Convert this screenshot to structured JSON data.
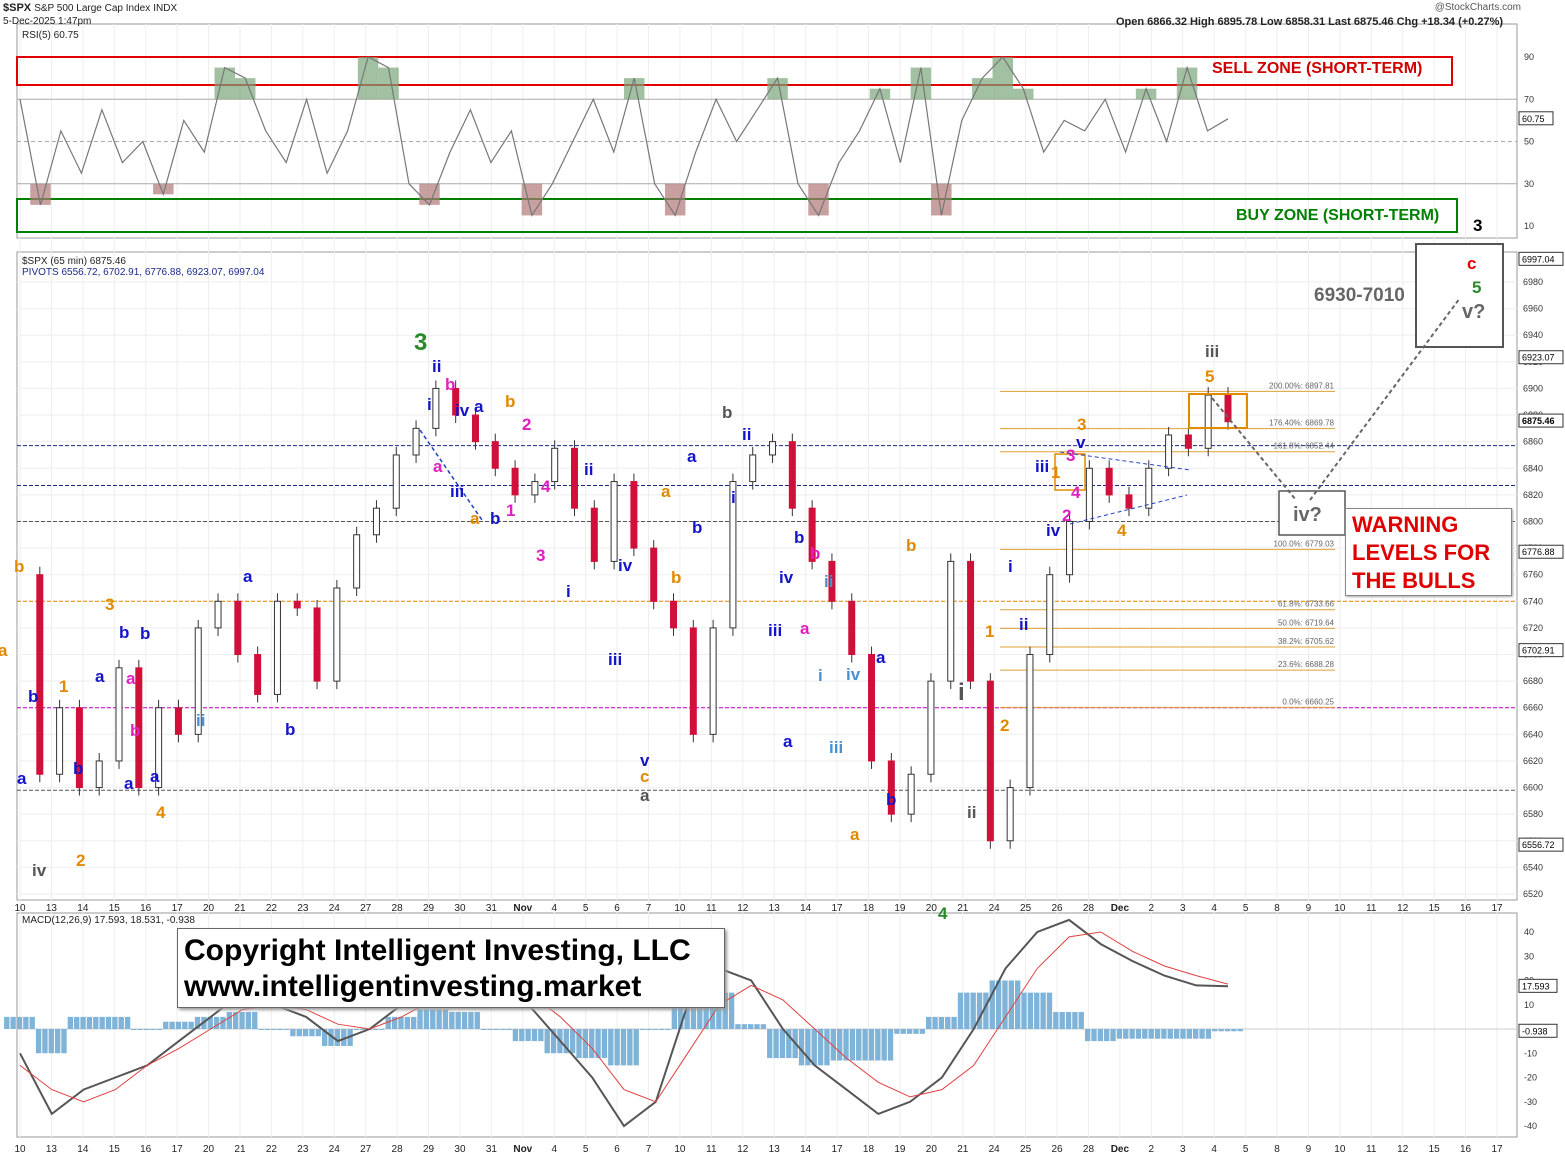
{
  "header": {
    "symbol": "$SPX",
    "name": "S&P 500 Large Cap Index",
    "exchange": "INDX",
    "datetime": "5-Dec-2025 1:47pm",
    "ohlc": "Open 6866.32  High 6895.78  Low 6858.31  Last 6875.46  Chg +18.34 (+0.27%)",
    "source": "@StockCharts.com",
    "price_legend": "$SPX (65 min) 6875.46",
    "pivots_legend": "PIVOTS 6556.72, 6702.91, 6776.88, 6923.07, 6997.04"
  },
  "rsi": {
    "legend": "RSI(5) 60.75",
    "current": "60.75",
    "ticks": [
      "90",
      "70",
      "50",
      "30",
      "10"
    ],
    "sell_zone": "SELL ZONE (SHORT-TERM)",
    "buy_zone": "BUY ZONE (SHORT-TERM)"
  },
  "macd": {
    "legend": "MACD(12,26,9) 17.593, 18.531, -0.938",
    "macd_value": "17.593",
    "hist_value": "-0.938",
    "ticks": [
      "40",
      "30",
      "20",
      "10",
      "-10",
      "-20",
      "-30",
      "-40"
    ]
  },
  "price_axis": {
    "ticks": [
      "6980",
      "6960",
      "6940",
      "6920",
      "6900",
      "6880",
      "6860",
      "6840",
      "6820",
      "6800",
      "6780",
      "6760",
      "6740",
      "6720",
      "6700",
      "6680",
      "6660",
      "6640",
      "6620",
      "6600",
      "6580",
      "6560",
      "6540",
      "6520"
    ],
    "tags": [
      "6997.04",
      "6923.07",
      "6875.46",
      "6776.88",
      "6702.91",
      "6556.72"
    ]
  },
  "x_axis": {
    "ticks": [
      "10",
      "13",
      "14",
      "15",
      "16",
      "17",
      "20",
      "21",
      "22",
      "23",
      "24",
      "27",
      "28",
      "29",
      "30",
      "31",
      "Nov",
      "4",
      "5",
      "6",
      "7",
      "10",
      "11",
      "12",
      "13",
      "14",
      "17",
      "18",
      "19",
      "20",
      "21",
      "24",
      "25",
      "26",
      "28",
      "Dec",
      "2",
      "3",
      "4",
      "5",
      "8",
      "9",
      "10",
      "11",
      "12",
      "15",
      "16",
      "17"
    ]
  },
  "fib": [
    {
      "label": "200.00%: 6897.81"
    },
    {
      "label": "176.40%: 6869.78"
    },
    {
      "label": "161.8%: 6852.44"
    },
    {
      "label": "100.0%: 6779.03"
    },
    {
      "label": "61.8%: 6733.66"
    },
    {
      "label": "50.0%: 6719.64"
    },
    {
      "label": "38.2%: 6705.62"
    },
    {
      "label": "23.6%: 6688.28"
    },
    {
      "label": "0.0%: 6660.25"
    }
  ],
  "annotations": {
    "target_range": "6930-7010",
    "warning": [
      "WARNING",
      "LEVELS FOR",
      "THE BULLS"
    ],
    "copyright": [
      "Copyright Intelligent Investing, LLC",
      "www.intelligentinvesting.market"
    ],
    "iv_q": "iv?",
    "v_q": "v?"
  },
  "chart_data": [
    {
      "type": "line",
      "title": "$SPX (65 min) 6875.46",
      "series": [
        {
          "name": "$SPX",
          "values": [
            6760,
            6610,
            6660,
            6600,
            6620,
            6690,
            6600,
            6660,
            6640,
            6720,
            6740,
            6700,
            6670,
            6740,
            6735,
            6680,
            6750,
            6790,
            6810,
            6850,
            6870,
            6900,
            6880,
            6860,
            6840,
            6820,
            6830,
            6855,
            6810,
            6770,
            6830,
            6780,
            6740,
            6720,
            6640,
            6720,
            6830,
            6850,
            6860,
            6810,
            6770,
            6740,
            6700,
            6620,
            6580,
            6610,
            6680,
            6770,
            6680,
            6560,
            6600,
            6700,
            6760,
            6800,
            6840,
            6820,
            6810,
            6840,
            6865,
            6855,
            6895,
            6875
          ]
        }
      ],
      "ylim": [
        6510,
        7000
      ]
    },
    {
      "type": "line",
      "title": "RSI(5) 60.75",
      "series": [
        {
          "name": "RSI(5)",
          "values": [
            70,
            20,
            55,
            35,
            65,
            40,
            50,
            25,
            60,
            45,
            85,
            80,
            55,
            40,
            70,
            35,
            55,
            90,
            85,
            30,
            20,
            45,
            65,
            40,
            55,
            15,
            30,
            50,
            70,
            45,
            80,
            30,
            15,
            45,
            70,
            50,
            65,
            80,
            30,
            15,
            40,
            55,
            75,
            40,
            85,
            15,
            60,
            80,
            90,
            75,
            45,
            60,
            55,
            70,
            45,
            75,
            50,
            85,
            55,
            60.75
          ]
        }
      ],
      "ylim": [
        0,
        100
      ]
    },
    {
      "type": "line",
      "title": "MACD(12,26,9) 17.593, 18.531, -0.938",
      "series": [
        {
          "name": "MACD",
          "values": [
            -10,
            -35,
            -25,
            -20,
            -15,
            -5,
            5,
            15,
            10,
            5,
            -5,
            0,
            10,
            20,
            25,
            20,
            10,
            -5,
            -20,
            -40,
            -30,
            10,
            25,
            20,
            0,
            -15,
            -25,
            -35,
            -30,
            -20,
            0,
            25,
            40,
            45,
            35,
            28,
            22,
            18,
            17.593
          ]
        },
        {
          "name": "Signal",
          "values": [
            -15,
            -25,
            -30,
            -25,
            -15,
            -8,
            0,
            8,
            10,
            8,
            2,
            0,
            5,
            12,
            18,
            20,
            15,
            5,
            -8,
            -25,
            -30,
            -10,
            10,
            18,
            12,
            0,
            -12,
            -22,
            -28,
            -25,
            -15,
            5,
            25,
            38,
            40,
            32,
            26,
            22,
            18.531
          ]
        }
      ],
      "histogram": [
        5,
        -10,
        5,
        5,
        0,
        3,
        5,
        7,
        0,
        -3,
        -7,
        0,
        5,
        8,
        7,
        0,
        -5,
        -10,
        -12,
        -15,
        0,
        20,
        15,
        2,
        -12,
        -15,
        -13,
        -13,
        -2,
        5,
        15,
        20,
        15,
        7,
        -5,
        -4,
        -4,
        -4,
        -0.938
      ],
      "ylim": [
        -45,
        45
      ]
    }
  ],
  "wave_labels": [
    {
      "t": "b",
      "c": "#e08a00"
    },
    {
      "t": "a",
      "c": "#e08a00"
    },
    {
      "t": "b",
      "c": "#1414c8"
    },
    {
      "t": "1",
      "c": "#e08a00"
    },
    {
      "t": "a",
      "c": "#1414c8"
    },
    {
      "t": "iv",
      "c": "#555"
    },
    {
      "t": "b",
      "c": "#1414c8"
    },
    {
      "t": "2",
      "c": "#e08a00"
    },
    {
      "t": "a",
      "c": "#1414c8"
    },
    {
      "t": "3",
      "c": "#e08a00"
    },
    {
      "t": "b",
      "c": "#1414c8"
    },
    {
      "t": "a",
      "c": "#1414c8"
    },
    {
      "t": "b",
      "c": "#1414c8"
    },
    {
      "t": "a",
      "c": "#e020c0"
    },
    {
      "t": "b",
      "c": "#e020c0"
    },
    {
      "t": "a",
      "c": "#1414c8"
    },
    {
      "t": "4",
      "c": "#e08a00"
    },
    {
      "t": "ii",
      "c": "#4a90d0"
    },
    {
      "t": "a",
      "c": "#1414c8"
    },
    {
      "t": "b",
      "c": "#1414c8"
    },
    {
      "t": "3",
      "c": "#2a8a2a"
    },
    {
      "t": "ii",
      "c": "#1414c8"
    },
    {
      "t": "b",
      "c": "#e020c0"
    },
    {
      "t": "i",
      "c": "#1414c8"
    },
    {
      "t": "iv",
      "c": "#1414c8"
    },
    {
      "t": "a",
      "c": "#1414c8"
    },
    {
      "t": "a",
      "c": "#e020c0"
    },
    {
      "t": "iii",
      "c": "#1414c8"
    },
    {
      "t": "a",
      "c": "#e08a00"
    },
    {
      "t": "b",
      "c": "#1414c8"
    },
    {
      "t": "1",
      "c": "#e020c0"
    },
    {
      "t": "b",
      "c": "#e08a00"
    },
    {
      "t": "2",
      "c": "#e020c0"
    },
    {
      "t": "4",
      "c": "#e020c0"
    },
    {
      "t": "3",
      "c": "#e020c0"
    },
    {
      "t": "ii",
      "c": "#1414c8"
    },
    {
      "t": "i",
      "c": "#1414c8"
    },
    {
      "t": "iv",
      "c": "#1414c8"
    },
    {
      "t": "iii",
      "c": "#1414c8"
    },
    {
      "t": "v",
      "c": "#1414c8"
    },
    {
      "t": "c",
      "c": "#e08a00"
    },
    {
      "t": "a",
      "c": "#555"
    },
    {
      "t": "a",
      "c": "#e08a00"
    },
    {
      "t": "b",
      "c": "#e08a00"
    },
    {
      "t": "a",
      "c": "#1414c8"
    },
    {
      "t": "b",
      "c": "#1414c8"
    },
    {
      "t": "b",
      "c": "#555"
    },
    {
      "t": "ii",
      "c": "#1414c8"
    },
    {
      "t": "i",
      "c": "#1414c8"
    },
    {
      "t": "b",
      "c": "#1414c8"
    },
    {
      "t": "b",
      "c": "#e020c0"
    },
    {
      "t": "iv",
      "c": "#1414c8"
    },
    {
      "t": "ii",
      "c": "#4a90d0"
    },
    {
      "t": "iii",
      "c": "#1414c8"
    },
    {
      "t": "a",
      "c": "#e020c0"
    },
    {
      "t": "i",
      "c": "#4a90d0"
    },
    {
      "t": "iv",
      "c": "#4a90d0"
    },
    {
      "t": "a",
      "c": "#1414c8"
    },
    {
      "t": "iii",
      "c": "#4a90d0"
    },
    {
      "t": "a",
      "c": "#1414c8"
    },
    {
      "t": "b",
      "c": "#1414c8"
    },
    {
      "t": "a",
      "c": "#e08a00"
    },
    {
      "t": "b",
      "c": "#e08a00"
    },
    {
      "t": "4",
      "c": "#2a8a2a"
    },
    {
      "t": "i",
      "c": "#555"
    },
    {
      "t": "ii",
      "c": "#555"
    },
    {
      "t": "1",
      "c": "#e08a00"
    },
    {
      "t": "2",
      "c": "#e08a00"
    },
    {
      "t": "i",
      "c": "#1414c8"
    },
    {
      "t": "ii",
      "c": "#1414c8"
    },
    {
      "t": "iii",
      "c": "#1414c8"
    },
    {
      "t": "iv",
      "c": "#1414c8"
    },
    {
      "t": "v",
      "c": "#1414c8"
    },
    {
      "t": "1",
      "c": "#e08a00"
    },
    {
      "t": "2",
      "c": "#e020c0"
    },
    {
      "t": "3",
      "c": "#e020c0"
    },
    {
      "t": "4",
      "c": "#e020c0"
    },
    {
      "t": "3",
      "c": "#e08a00"
    },
    {
      "t": "4",
      "c": "#e08a00"
    },
    {
      "t": "5",
      "c": "#e08a00"
    },
    {
      "t": "iii",
      "c": "#555"
    },
    {
      "t": "3",
      "c": "#000"
    },
    {
      "t": "c",
      "c": "#e00000"
    },
    {
      "t": "5",
      "c": "#2a8a2a"
    }
  ]
}
